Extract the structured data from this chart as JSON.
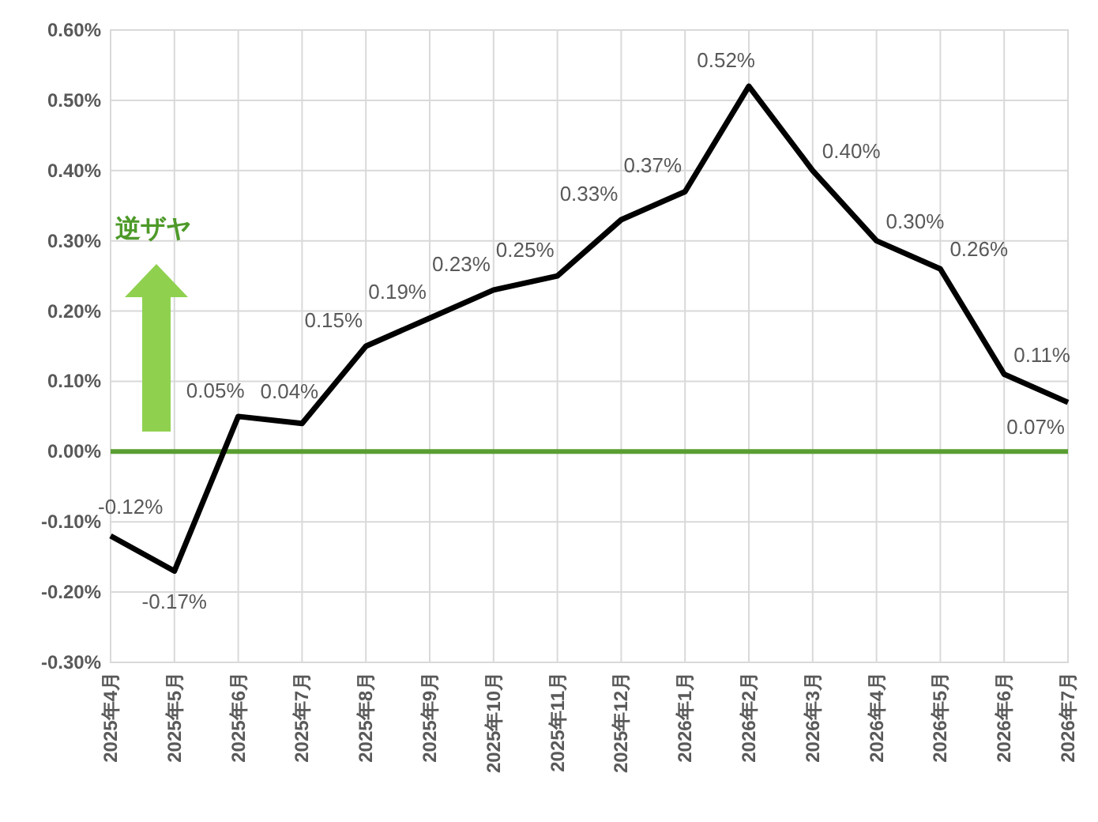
{
  "chart_data": {
    "type": "line",
    "categories": [
      "2025年4月",
      "2025年5月",
      "2025年6月",
      "2025年7月",
      "2025年8月",
      "2025年9月",
      "2025年10月",
      "2025年11月",
      "2025年12月",
      "2026年1月",
      "2026年2月",
      "2026年3月",
      "2026年4月",
      "2026年5月",
      "2026年6月",
      "2026年7月"
    ],
    "series": [
      {
        "color": "#000000",
        "values": [
          -0.12,
          -0.17,
          0.05,
          0.04,
          0.15,
          0.19,
          0.23,
          0.25,
          0.33,
          0.37,
          0.52,
          0.4,
          0.3,
          0.26,
          0.11,
          0.07
        ],
        "value_labels": [
          "-0.12%",
          "-0.17%",
          "0.05%",
          "0.04%",
          "0.15%",
          "0.19%",
          "0.23%",
          "0.25%",
          "0.33%",
          "0.37%",
          "0.52%",
          "0.40%",
          "0.30%",
          "0.26%",
          "0.11%",
          "0.07%"
        ]
      }
    ],
    "ylim": [
      -0.3,
      0.6
    ],
    "yticks": [
      {
        "value": -0.3,
        "label": "-0.30%"
      },
      {
        "value": -0.2,
        "label": "-0.20%"
      },
      {
        "value": -0.1,
        "label": "-0.10%"
      },
      {
        "value": 0,
        "label": "0.00%"
      },
      {
        "value": 0.1,
        "label": "0.10%"
      },
      {
        "value": 0.2,
        "label": "0.20%"
      },
      {
        "value": 0.3,
        "label": "0.30%"
      },
      {
        "value": 0.4,
        "label": "0.40%"
      },
      {
        "value": 0.5,
        "label": "0.50%"
      },
      {
        "value": 0.6,
        "label": "0.60%"
      }
    ],
    "grid": true,
    "marker": "none",
    "line_style": "solid",
    "ref_lines": [
      {
        "axis": "y",
        "value": 0,
        "color": "#5a9e32"
      }
    ],
    "annotations": [
      "逆ザヤ"
    ]
  }
}
